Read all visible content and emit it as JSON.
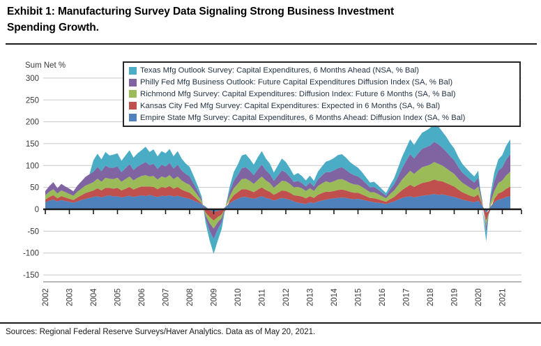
{
  "header": {
    "title_line1": "Exhibit 1: Manufacturing Survey Data Signaling Strong Business Investment",
    "title_line2": "Spending Growth."
  },
  "footer": {
    "sources": "Sources: Regional Federal Reserve Surveys/Haver Analytics. Data as of May 20, 2021."
  },
  "chart_data": {
    "type": "area",
    "stacked": true,
    "title": "Exhibit 1: Manufacturing Survey Data Signaling Strong Business Investment Spending Growth.",
    "ylabel": "Sum Net %",
    "xlabel": "",
    "grid": true,
    "legend_position": "top-inside",
    "ylim": [
      -170,
      320
    ],
    "y_ticks": [
      300,
      250,
      200,
      150,
      100,
      50,
      0,
      -50,
      -100,
      -150
    ],
    "x_ticks": [
      "2002",
      "2003",
      "2004",
      "2005",
      "2006",
      "2007",
      "2008",
      "2009",
      "2010",
      "2011",
      "2012",
      "2013",
      "2014",
      "2015",
      "2016",
      "2017",
      "2018",
      "2019",
      "2020",
      "2021"
    ],
    "x_start": 2002.0,
    "x_step_years": 0.166667,
    "x_end": 2021.333,
    "axis_colors": {
      "gridline": "#c9c9c9",
      "zero_line": "#1a1a1a",
      "bottom_line": "#a0a0a0",
      "tick_label": "#3a3a3a"
    },
    "series": [
      {
        "short": "empire-state",
        "name": "Empire State Mfg Survey: Capital Expenditures, 6 Months Ahead: Diffusion Index (SA, % Bal)",
        "color": "#4F81BD",
        "values": [
          16,
          20,
          22,
          18,
          21,
          19,
          17,
          15,
          18,
          21,
          24,
          26,
          28,
          30,
          27,
          30,
          32,
          29,
          30,
          27,
          29,
          31,
          28,
          30,
          32,
          30,
          33,
          30,
          28,
          31,
          30,
          32,
          29,
          31,
          28,
          26,
          24,
          20,
          16,
          12,
          6,
          -2,
          -6,
          -4,
          -2,
          6,
          14,
          20,
          24,
          28,
          28,
          26,
          24,
          27,
          30,
          26,
          24,
          20,
          23,
          26,
          24,
          22,
          18,
          15,
          14,
          12,
          16,
          14,
          18,
          20,
          22,
          24,
          25,
          26,
          27,
          26,
          24,
          23,
          24,
          22,
          20,
          18,
          16,
          15,
          14,
          12,
          15,
          18,
          22,
          26,
          28,
          30,
          27,
          29,
          31,
          32,
          33,
          35,
          33,
          34,
          32,
          30,
          28,
          25,
          22,
          20,
          18,
          16,
          20,
          8,
          -8,
          6,
          16,
          22,
          24,
          28,
          30
        ]
      },
      {
        "short": "kansas-city",
        "name": "Kansas City Fed Mfg Survey: Capital Expenditures: Expected in 6 Months (SA, % Bal)",
        "color": "#C0504D",
        "values": [
          6,
          8,
          10,
          7,
          9,
          8,
          7,
          6,
          9,
          11,
          13,
          14,
          15,
          18,
          16,
          19,
          17,
          18,
          19,
          16,
          18,
          20,
          17,
          19,
          20,
          22,
          19,
          21,
          18,
          20,
          19,
          21,
          18,
          20,
          17,
          15,
          14,
          10,
          6,
          2,
          -8,
          -16,
          -20,
          -14,
          -10,
          -2,
          6,
          12,
          15,
          18,
          18,
          17,
          15,
          18,
          20,
          18,
          16,
          13,
          15,
          17,
          18,
          16,
          14,
          16,
          15,
          13,
          14,
          12,
          15,
          17,
          18,
          16,
          17,
          18,
          18,
          17,
          16,
          15,
          14,
          12,
          10,
          8,
          9,
          8,
          6,
          5,
          8,
          10,
          14,
          18,
          22,
          26,
          24,
          27,
          29,
          30,
          31,
          33,
          32,
          30,
          28,
          26,
          24,
          20,
          17,
          15,
          13,
          12,
          14,
          2,
          -18,
          -2,
          8,
          14,
          16,
          19,
          22
        ]
      },
      {
        "short": "richmond",
        "name": "Richmond Mfg Survey: Capital Expenditures: Diffusion Index: Future 6 Months (SA, % Bal)",
        "color": "#9BBB59",
        "values": [
          10,
          12,
          14,
          11,
          13,
          12,
          11,
          10,
          13,
          15,
          17,
          18,
          19,
          22,
          20,
          23,
          21,
          22,
          23,
          20,
          22,
          24,
          21,
          23,
          24,
          26,
          23,
          25,
          22,
          24,
          23,
          25,
          22,
          24,
          21,
          19,
          18,
          14,
          10,
          5,
          -6,
          -14,
          -18,
          -12,
          -8,
          2,
          10,
          16,
          19,
          23,
          24,
          22,
          19,
          22,
          25,
          22,
          20,
          16,
          19,
          22,
          22,
          20,
          18,
          20,
          19,
          17,
          18,
          16,
          20,
          22,
          24,
          21,
          22,
          24,
          24,
          22,
          20,
          19,
          18,
          17,
          15,
          13,
          14,
          12,
          10,
          8,
          12,
          15,
          19,
          24,
          28,
          32,
          30,
          33,
          36,
          37,
          38,
          40,
          39,
          36,
          34,
          31,
          29,
          25,
          22,
          20,
          18,
          16,
          18,
          4,
          -12,
          8,
          18,
          24,
          26,
          31,
          34
        ]
      },
      {
        "short": "philly",
        "name": "Philly Fed Mfg Business Outlook: Future Capital Expenditures Diffusion Index (SA, % Bal)",
        "color": "#8064A2",
        "values": [
          10,
          13,
          16,
          12,
          15,
          13,
          12,
          10,
          14,
          17,
          20,
          22,
          24,
          27,
          24,
          28,
          25,
          26,
          26,
          22,
          25,
          28,
          24,
          26,
          27,
          30,
          26,
          28,
          24,
          27,
          26,
          28,
          24,
          27,
          23,
          21,
          19,
          15,
          10,
          4,
          -8,
          -18,
          -24,
          -16,
          -10,
          0,
          10,
          17,
          20,
          25,
          26,
          23,
          20,
          24,
          27,
          23,
          21,
          16,
          20,
          24,
          20,
          16,
          12,
          14,
          12,
          10,
          13,
          10,
          15,
          18,
          21,
          24,
          25,
          26,
          27,
          25,
          23,
          21,
          19,
          17,
          14,
          11,
          12,
          10,
          8,
          6,
          10,
          14,
          20,
          26,
          32,
          38,
          35,
          39,
          42,
          43,
          44,
          46,
          45,
          41,
          38,
          34,
          31,
          27,
          23,
          21,
          19,
          17,
          20,
          5,
          -14,
          10,
          22,
          28,
          30,
          36,
          40
        ]
      },
      {
        "short": "texas",
        "name": "Texas Mfg Outlook Survey: Capital Expenditures, 6 Months Ahead (NSA, % Bal)",
        "color": "#4BACC6",
        "values": [
          0,
          0,
          0,
          0,
          0,
          0,
          0,
          0,
          0,
          0,
          0,
          0,
          26,
          30,
          27,
          31,
          28,
          30,
          30,
          26,
          29,
          32,
          28,
          30,
          32,
          35,
          30,
          33,
          29,
          31,
          30,
          32,
          28,
          31,
          27,
          24,
          22,
          17,
          12,
          6,
          -10,
          -22,
          -34,
          -26,
          -15,
          0,
          12,
          20,
          24,
          29,
          30,
          27,
          24,
          28,
          31,
          27,
          24,
          19,
          23,
          27,
          24,
          20,
          16,
          18,
          16,
          14,
          16,
          13,
          18,
          21,
          24,
          27,
          28,
          30,
          30,
          28,
          25,
          23,
          20,
          17,
          14,
          11,
          12,
          10,
          8,
          6,
          10,
          14,
          20,
          26,
          30,
          34,
          31,
          34,
          37,
          38,
          40,
          42,
          41,
          37,
          34,
          30,
          27,
          23,
          20,
          18,
          16,
          14,
          16,
          -2,
          -22,
          8,
          20,
          26,
          28,
          32,
          34
        ]
      }
    ]
  }
}
